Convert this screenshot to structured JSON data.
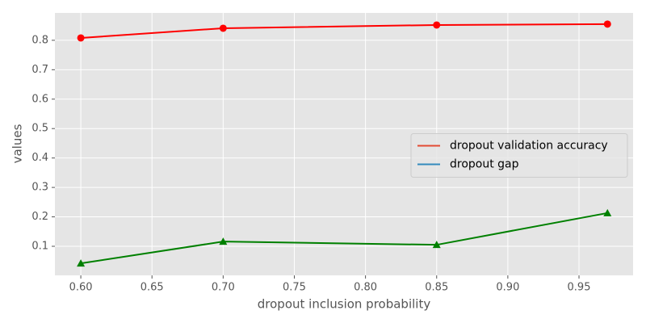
{
  "chart_data": {
    "type": "line",
    "x_label": "dropout inclusion probability",
    "y_label": "values",
    "x": [
      0.6,
      0.7,
      0.85,
      0.97
    ],
    "series": [
      {
        "name": "dropout validation accuracy",
        "color": "#ff0000",
        "legend_color": "#E24A33",
        "marker": "circle",
        "values": [
          0.808,
          0.841,
          0.852,
          0.855
        ]
      },
      {
        "name": "dropout gap",
        "color": "#008000",
        "legend_color": "#348ABD",
        "marker": "triangle",
        "values": [
          0.042,
          0.116,
          0.105,
          0.213
        ]
      }
    ],
    "xlim": [
      0.5818,
      0.988
    ],
    "ylim": [
      0.0012,
      0.893
    ],
    "xticks": [
      {
        "value": 0.6,
        "label": "0.60"
      },
      {
        "value": 0.65,
        "label": "0.65"
      },
      {
        "value": 0.7,
        "label": "0.70"
      },
      {
        "value": 0.75,
        "label": "0.75"
      },
      {
        "value": 0.8,
        "label": "0.80"
      },
      {
        "value": 0.85,
        "label": "0.85"
      },
      {
        "value": 0.9,
        "label": "0.90"
      },
      {
        "value": 0.95,
        "label": "0.95"
      }
    ],
    "yticks": [
      0.1,
      0.2,
      0.3,
      0.4,
      0.5,
      0.6,
      0.7,
      0.8
    ],
    "grid": true,
    "legend_position": "center right"
  }
}
